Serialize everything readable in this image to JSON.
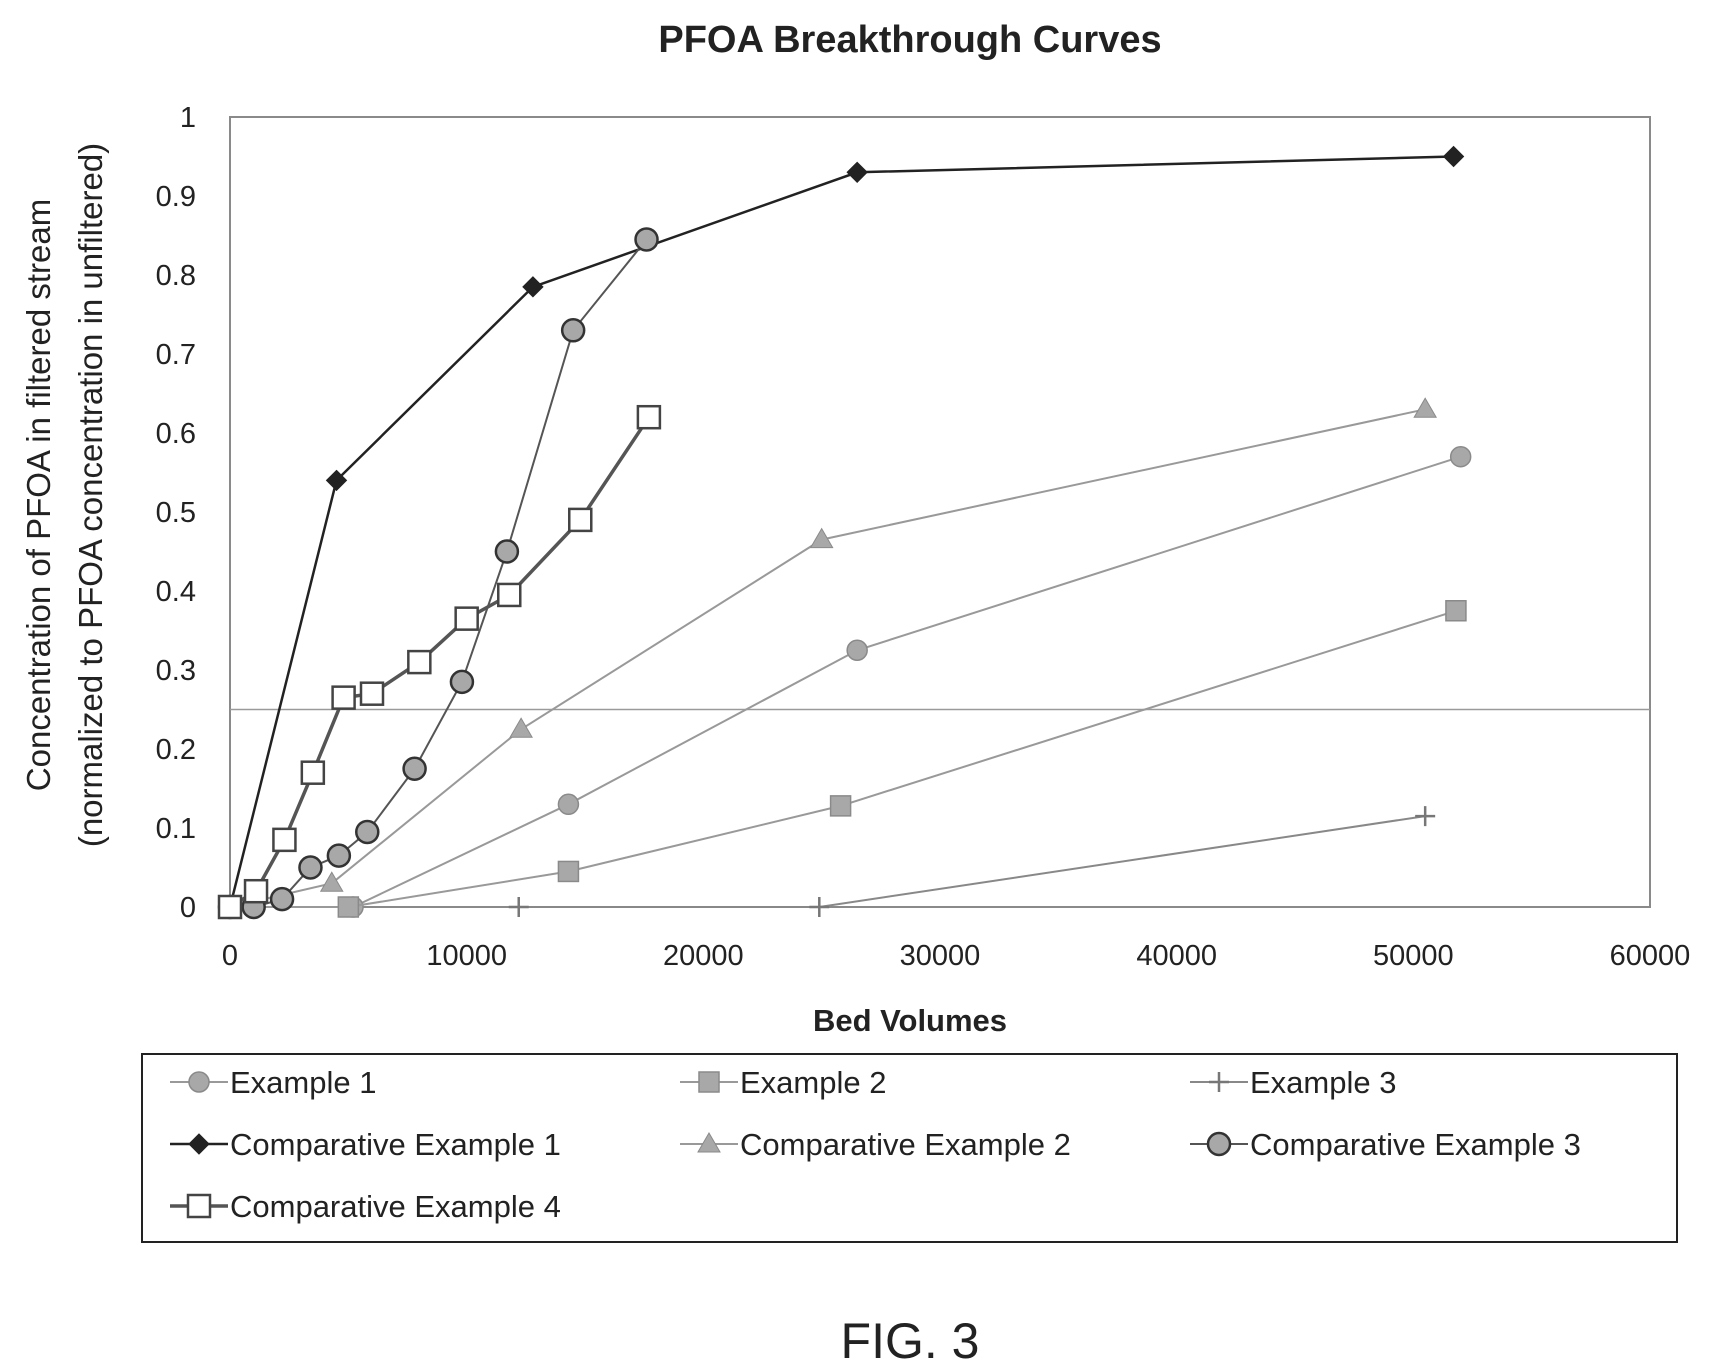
{
  "chart_data": {
    "type": "line",
    "title": "PFOA Breakthrough Curves",
    "xlabel": "Bed Volumes",
    "ylabel": [
      "Concentration of PFOA in filtered stream",
      "(normalized to PFOA concentration in unfiltered)"
    ],
    "xlim": [
      0,
      60000
    ],
    "ylim": [
      0,
      1
    ],
    "xticks": [
      0,
      10000,
      20000,
      30000,
      40000,
      50000,
      60000
    ],
    "yticks": [
      0,
      0.1,
      0.2,
      0.3,
      0.4,
      0.5,
      0.6,
      0.7,
      0.8,
      0.9,
      1
    ],
    "ytick_labels": [
      "0",
      "0.1",
      "0.2",
      "0.3",
      "0.4",
      "0.5",
      "0.6",
      "0.7",
      "0.8",
      "0.9",
      "1"
    ],
    "reference_line_y": 0.25,
    "legend_position": "bottom",
    "series": [
      {
        "name": "Example 1",
        "marker": "circle",
        "color": "#999999",
        "x": [
          0,
          5200,
          14300,
          26500,
          52000
        ],
        "y": [
          0,
          0,
          0.13,
          0.325,
          0.57
        ]
      },
      {
        "name": "Example 2",
        "marker": "square",
        "color": "#999999",
        "x": [
          0,
          5000,
          14300,
          25800,
          51800
        ],
        "y": [
          0,
          0,
          0.045,
          0.128,
          0.375
        ]
      },
      {
        "name": "Example 3",
        "marker": "plus",
        "color": "#888888",
        "x": [
          12200,
          24900,
          50500
        ],
        "y": [
          0,
          0,
          0.115
        ]
      },
      {
        "name": "Comparative Example 1",
        "marker": "diamond",
        "color": "#222222",
        "x": [
          0,
          4500,
          12800,
          26500,
          51700
        ],
        "y": [
          0,
          0.54,
          0.785,
          0.93,
          0.95
        ]
      },
      {
        "name": "Comparative Example 2",
        "marker": "triangle",
        "color": "#999999",
        "x": [
          0,
          4300,
          12300,
          25000,
          50500
        ],
        "y": [
          0,
          0.03,
          0.225,
          0.465,
          0.63
        ]
      },
      {
        "name": "Comparative Example 3",
        "marker": "circle-outlined",
        "color": "#555555",
        "x": [
          0,
          1000,
          2200,
          3400,
          4600,
          5800,
          7800,
          9800,
          11700,
          14500,
          17600
        ],
        "y": [
          0,
          0,
          0.01,
          0.05,
          0.065,
          0.095,
          0.175,
          0.285,
          0.45,
          0.73,
          0.845
        ]
      },
      {
        "name": "Comparative Example 4",
        "marker": "square-open",
        "color": "#555555",
        "x": [
          0,
          1100,
          2300,
          3500,
          4800,
          6000,
          8000,
          10000,
          11800,
          14800,
          17700
        ],
        "y": [
          0,
          0.02,
          0.085,
          0.17,
          0.265,
          0.27,
          0.31,
          0.365,
          0.395,
          0.49,
          0.62
        ]
      }
    ]
  },
  "figure_label": "FIG. 3"
}
